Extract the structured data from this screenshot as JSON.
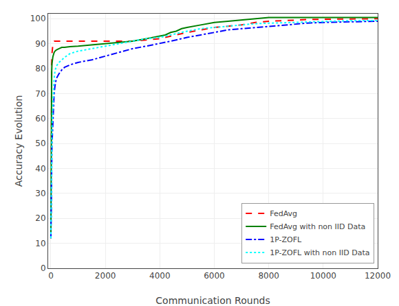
{
  "chart_data": {
    "type": "line",
    "xlabel": "Communication Rounds",
    "ylabel": "Accuracy Evolution",
    "x": [
      0,
      10,
      20,
      30,
      40,
      50,
      60,
      70,
      80,
      90,
      100,
      120,
      150,
      200,
      300,
      400,
      500,
      700,
      1000,
      1500,
      2000,
      2500,
      3000,
      3500,
      4000,
      4200,
      4400,
      4600,
      4800,
      5000,
      5500,
      6000,
      6500,
      7000,
      7500,
      8000,
      8500,
      9000,
      9500,
      10000,
      11000,
      12000
    ],
    "series": [
      {
        "name": "FedAvg",
        "color": "red",
        "line_style": "dashed",
        "values": [
          12,
          55,
          75,
          82,
          86,
          88,
          89,
          90,
          90.5,
          90.8,
          91,
          91,
          91,
          91,
          91,
          91,
          91,
          91,
          91,
          91,
          91,
          91,
          91,
          91.5,
          92,
          92.5,
          93,
          93.5,
          94,
          94.5,
          95.5,
          96.5,
          97,
          97.5,
          98.5,
          99,
          99.2,
          99.5,
          99.7,
          99.8,
          100,
          100
        ]
      },
      {
        "name": "FedAvg with non IID Data",
        "color": "green",
        "line_style": "solid",
        "values": [
          12,
          53,
          73,
          79,
          82,
          83.5,
          84,
          84.5,
          85,
          85.5,
          86,
          86.5,
          87,
          87.5,
          88,
          88.5,
          88.5,
          88.8,
          89,
          89.5,
          90,
          90.5,
          91,
          92,
          93,
          93.5,
          94.5,
          95,
          96,
          96.5,
          97.5,
          98.5,
          99,
          99.5,
          100,
          100.5,
          100.5,
          100.5,
          100.5,
          100.5,
          100.5,
          100.5
        ]
      },
      {
        "name": "1P-ZOFL",
        "color": "blue",
        "line_style": "dashdot",
        "values": [
          12,
          29,
          40,
          47,
          50,
          52,
          55,
          58,
          61,
          64,
          67,
          70,
          73,
          76,
          78,
          79.5,
          80.5,
          81.5,
          82.5,
          83.5,
          85,
          86.5,
          88,
          89,
          90,
          90.5,
          91,
          91.5,
          92,
          92.5,
          93.5,
          94.5,
          95.5,
          96,
          96.5,
          97,
          97.5,
          98,
          98.3,
          98.5,
          98.8,
          99
        ]
      },
      {
        "name": "1P-ZOFL with non IID Data",
        "color": "cyan",
        "line_style": "dotted",
        "values": [
          12,
          32,
          45,
          52,
          56,
          59,
          62,
          65,
          67,
          70,
          73,
          76,
          79,
          81,
          82.5,
          83.5,
          84.5,
          86,
          87,
          88,
          89,
          90,
          91,
          92,
          92.5,
          93,
          93.5,
          94,
          94.5,
          95,
          96,
          96.5,
          97,
          97.5,
          98,
          98.2,
          98.4,
          98.6,
          98.8,
          99,
          99.2,
          99.3
        ]
      }
    ],
    "xlim": [
      -100,
      12000
    ],
    "ylim": [
      0,
      102
    ],
    "xticks": [
      0,
      2000,
      4000,
      6000,
      8000,
      10000,
      12000
    ],
    "yticks": [
      0,
      10,
      20,
      30,
      40,
      50,
      60,
      70,
      80,
      90,
      100
    ],
    "grid": true,
    "legend": "lower right"
  }
}
